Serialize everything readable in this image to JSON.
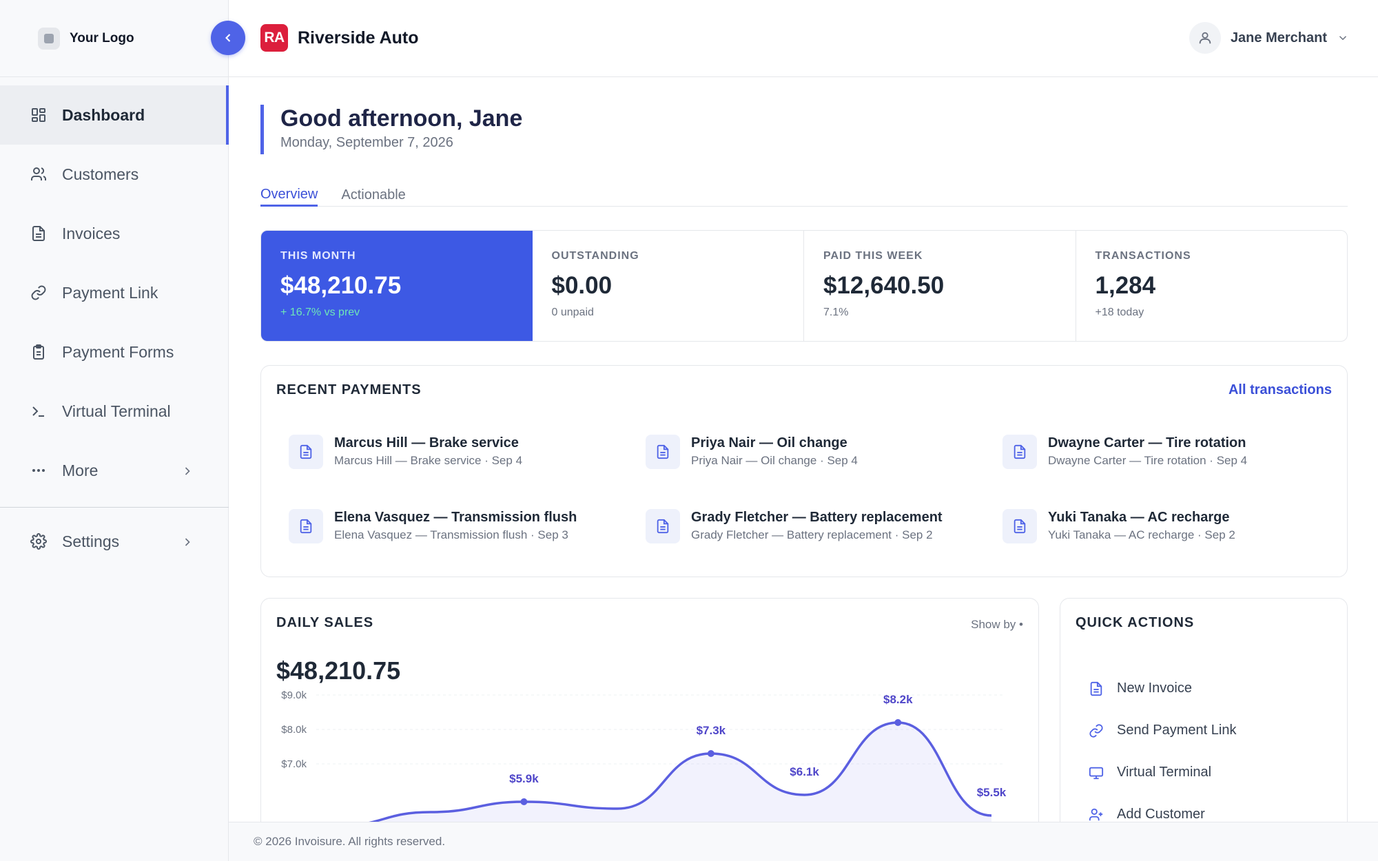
{
  "sidebar": {
    "logo_text": "Your Logo",
    "items": [
      {
        "label": "Dashboard",
        "icon": "dashboard-icon",
        "active": true
      },
      {
        "label": "Customers",
        "icon": "users-icon"
      },
      {
        "label": "Invoices",
        "icon": "document-icon"
      },
      {
        "label": "Payment Link",
        "icon": "link-icon"
      },
      {
        "label": "Payment Forms",
        "icon": "clipboard-icon"
      },
      {
        "label": "Virtual Terminal",
        "icon": "terminal-icon"
      },
      {
        "label": "More",
        "icon": "more-icon"
      }
    ],
    "settings_label": "Settings"
  },
  "header": {
    "brand_initials": "RA",
    "brand_name": "Riverside Auto",
    "brand_color": "#dc1f3c",
    "user_name": "Jane Merchant"
  },
  "greeting": {
    "title": "Good afternoon, Jane",
    "date": "Monday, September 7, 2026"
  },
  "tabs": [
    {
      "label": "Overview",
      "active": true
    },
    {
      "label": "Actionable"
    }
  ],
  "stats": [
    {
      "label": "THIS MONTH",
      "value": "$48,210.75",
      "sub": "+ 16.7% vs prev"
    },
    {
      "label": "OUTSTANDING",
      "value": "$0.00",
      "sub": "0 unpaid"
    },
    {
      "label": "PAID THIS WEEK",
      "value": "$12,640.50",
      "sub": "7.1%"
    },
    {
      "label": "TRANSACTIONS",
      "value": "1,284",
      "sub": "+18 today"
    }
  ],
  "recent": {
    "title": "RECENT PAYMENTS",
    "link": "All transactions",
    "items": [
      {
        "title": "Marcus Hill — Brake service",
        "sub": "Marcus Hill — Brake service · Sep 4"
      },
      {
        "title": "Priya Nair — Oil change",
        "sub": "Priya Nair — Oil change · Sep 4"
      },
      {
        "title": "Dwayne Carter — Tire rotation",
        "sub": "Dwayne Carter — Tire rotation · Sep 4"
      },
      {
        "title": "Elena Vasquez — Transmission flush",
        "sub": "Elena Vasquez — Transmission flush · Sep 3"
      },
      {
        "title": "Grady Fletcher — Battery replacement",
        "sub": "Grady Fletcher — Battery replacement · Sep 2"
      },
      {
        "title": "Yuki Tanaka — AC recharge",
        "sub": "Yuki Tanaka — AC recharge · Sep 2"
      }
    ]
  },
  "sales": {
    "title": "DAILY SALES",
    "show_by": "Show by",
    "total": "$48,210.75"
  },
  "chart_data": {
    "type": "area",
    "title": "DAILY SALES",
    "y_ticks": [
      "$9.0k",
      "$8.0k",
      "$7.0k"
    ],
    "ylim": [
      4000,
      9000
    ],
    "points": [
      {
        "x": 0,
        "y": 5200,
        "label": ""
      },
      {
        "x": 1,
        "y": 5600,
        "label": ""
      },
      {
        "x": 2,
        "y": 5900,
        "label": "$5.9k"
      },
      {
        "x": 3,
        "y": 5700,
        "label": ""
      },
      {
        "x": 4,
        "y": 7300,
        "label": "$7.3k"
      },
      {
        "x": 5,
        "y": 6100,
        "label": "$6.1k"
      },
      {
        "x": 6,
        "y": 8200,
        "label": "$8.2k"
      },
      {
        "x": 7,
        "y": 5500,
        "label": "$5.5k"
      }
    ],
    "grid": true,
    "color": "#5b5fe0"
  },
  "quick": {
    "title": "QUICK ACTIONS",
    "items": [
      {
        "label": "New Invoice",
        "icon": "document-icon"
      },
      {
        "label": "Send Payment Link",
        "icon": "link-icon"
      },
      {
        "label": "Virtual Terminal",
        "icon": "monitor-icon"
      },
      {
        "label": "Add Customer",
        "icon": "user-plus-icon"
      }
    ]
  },
  "footer": {
    "text": "© 2026 Invoisure. All rights reserved."
  },
  "colors": {
    "accent": "#4f63e7",
    "primary_card": "#3d59e4",
    "positive": "#6ee7b7"
  }
}
